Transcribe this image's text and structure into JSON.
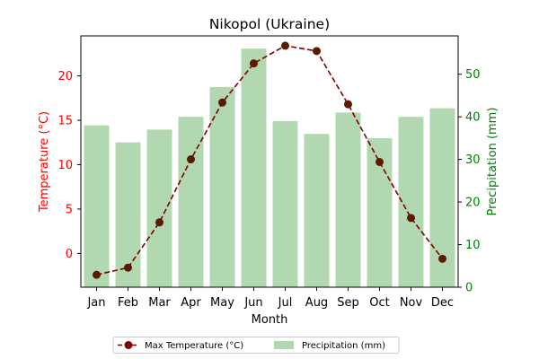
{
  "chart_data": {
    "type": "bar+line",
    "title": "Nikopol (Ukraine)",
    "xlabel": "Month",
    "categories": [
      "Jan",
      "Feb",
      "Mar",
      "Apr",
      "May",
      "Jun",
      "Jul",
      "Aug",
      "Sep",
      "Oct",
      "Nov",
      "Dec"
    ],
    "series": [
      {
        "name": "Precipitation (mm)",
        "type": "bar",
        "axis": "right",
        "color": "#b2d8b2",
        "values": [
          38,
          34,
          37,
          40,
          47,
          56,
          39,
          36,
          41,
          35,
          40,
          42
        ]
      },
      {
        "name": "Max Temperature (°C)",
        "type": "line",
        "axis": "left",
        "color": "#7f0000",
        "marker_color": "#5a1a00",
        "line_style": "dashed",
        "values": [
          -2.4,
          -1.6,
          3.5,
          10.6,
          17.0,
          21.4,
          23.4,
          22.8,
          16.8,
          10.3,
          4.0,
          -0.6
        ]
      }
    ],
    "y_left": {
      "label": "Temperature (°C)",
      "color": "#ff0000",
      "ylim": [
        -3.8,
        24.5
      ],
      "ticks": [
        0,
        5,
        10,
        15,
        20
      ]
    },
    "y_right": {
      "label": "Precipitation (mm)",
      "color": "#008000",
      "ylim": [
        0,
        59
      ],
      "ticks": [
        0,
        10,
        20,
        30,
        40,
        50
      ]
    },
    "legend_position": "bottom-center",
    "grid": false
  }
}
